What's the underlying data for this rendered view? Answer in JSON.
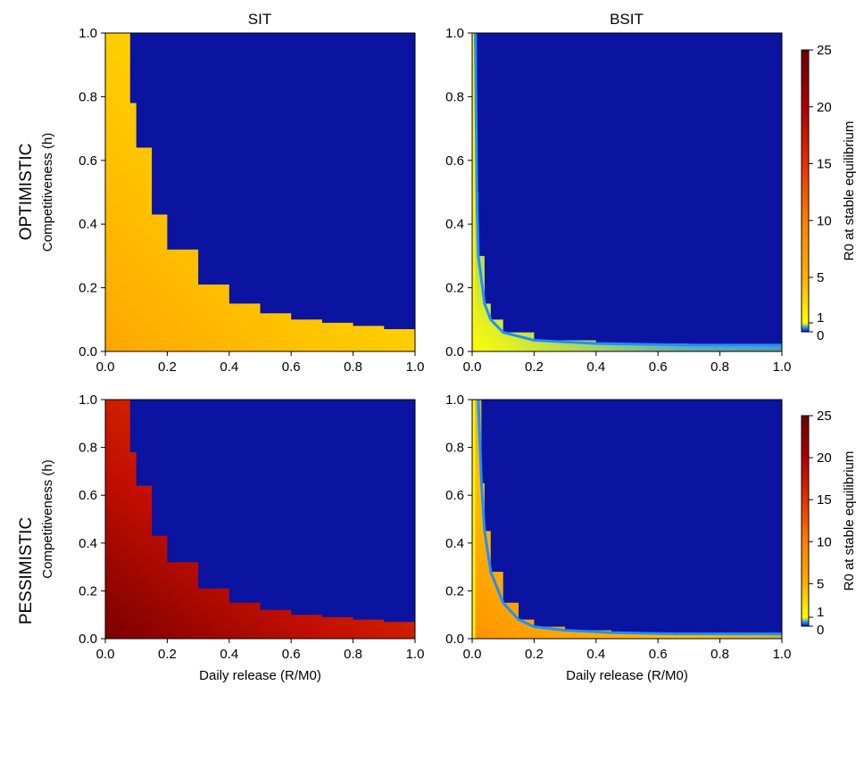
{
  "figure": {
    "columns": [
      "SIT",
      "BSIT"
    ],
    "rows": [
      "OPTIMISTIC",
      "PESSIMISTIC"
    ]
  },
  "colorbar": {
    "label": "R0 at stable equilibrium",
    "ticks": [
      0,
      1,
      5,
      10,
      15,
      20,
      25
    ],
    "min": 0,
    "max": 25,
    "colors": {
      "0": "#0a14a0",
      "0.5": "#1e90ff",
      "1": "#ffff00",
      "5": "#ffb000",
      "10": "#ff8000",
      "15": "#e83000",
      "20": "#b00000",
      "25": "#6e0000"
    }
  },
  "chart_data": [
    {
      "type": "heatmap",
      "panel": "optimistic-sit",
      "column": "SIT",
      "row": "OPTIMISTIC",
      "xlabel": "Daily release (R/M0)",
      "ylabel": "Competitiveness (h)",
      "xlim": [
        0,
        1
      ],
      "ylim": [
        0,
        1
      ],
      "xticks": [
        "0.0",
        "0.2",
        "0.4",
        "0.6",
        "0.8",
        "1.0"
      ],
      "yticks": [
        "0.0",
        "0.2",
        "0.4",
        "0.6",
        "0.8",
        "1.0"
      ],
      "boundary": [
        [
          0.06,
          1.0
        ],
        [
          0.08,
          0.78
        ],
        [
          0.1,
          0.64
        ],
        [
          0.15,
          0.43
        ],
        [
          0.2,
          0.32
        ],
        [
          0.3,
          0.21
        ],
        [
          0.4,
          0.15
        ],
        [
          0.5,
          0.12
        ],
        [
          0.6,
          0.1
        ],
        [
          0.7,
          0.09
        ],
        [
          0.8,
          0.08
        ],
        [
          0.9,
          0.07
        ],
        [
          1.0,
          0.06
        ]
      ],
      "region_below_value_range": [
        2,
        6
      ],
      "region_above_value": 0
    },
    {
      "type": "heatmap",
      "panel": "optimistic-bsit",
      "column": "BSIT",
      "row": "OPTIMISTIC",
      "xlabel": "Daily release (R/M0)",
      "ylabel": "",
      "xlim": [
        0,
        1
      ],
      "ylim": [
        0,
        1
      ],
      "xticks": [
        "0.0",
        "0.2",
        "0.4",
        "0.6",
        "0.8",
        "1.0"
      ],
      "yticks": [
        "0.0",
        "0.2",
        "0.4",
        "0.6",
        "0.8",
        "1.0"
      ],
      "boundary": [
        [
          0.01,
          1.0
        ],
        [
          0.015,
          0.5
        ],
        [
          0.02,
          0.3
        ],
        [
          0.04,
          0.15
        ],
        [
          0.06,
          0.1
        ],
        [
          0.1,
          0.06
        ],
        [
          0.2,
          0.035
        ],
        [
          0.4,
          0.025
        ],
        [
          0.7,
          0.02
        ],
        [
          1.0,
          0.02
        ]
      ],
      "edge_band_max_x": 0.01,
      "region_below_value_range": [
        0.3,
        1
      ],
      "region_above_value": 0
    },
    {
      "type": "heatmap",
      "panel": "pessimistic-sit",
      "column": "SIT",
      "row": "PESSIMISTIC",
      "xlabel": "Daily release (R/M0)",
      "ylabel": "Competitiveness (h)",
      "xlim": [
        0,
        1
      ],
      "ylim": [
        0,
        1
      ],
      "xticks": [
        "0.0",
        "0.2",
        "0.4",
        "0.6",
        "0.8",
        "1.0"
      ],
      "yticks": [
        "0.0",
        "0.2",
        "0.4",
        "0.6",
        "0.8",
        "1.0"
      ],
      "boundary": [
        [
          0.06,
          1.0
        ],
        [
          0.08,
          0.78
        ],
        [
          0.1,
          0.64
        ],
        [
          0.15,
          0.43
        ],
        [
          0.2,
          0.32
        ],
        [
          0.3,
          0.21
        ],
        [
          0.4,
          0.15
        ],
        [
          0.5,
          0.12
        ],
        [
          0.6,
          0.1
        ],
        [
          0.7,
          0.09
        ],
        [
          0.8,
          0.08
        ],
        [
          0.9,
          0.07
        ],
        [
          1.0,
          0.06
        ]
      ],
      "region_below_value_range": [
        13,
        24
      ],
      "region_above_value": 0
    },
    {
      "type": "heatmap",
      "panel": "pessimistic-bsit",
      "column": "BSIT",
      "row": "PESSIMISTIC",
      "xlabel": "Daily release (R/M0)",
      "ylabel": "",
      "xlim": [
        0,
        1
      ],
      "ylim": [
        0,
        1
      ],
      "xticks": [
        "0.0",
        "0.2",
        "0.4",
        "0.6",
        "0.8",
        "1.0"
      ],
      "yticks": [
        "0.0",
        "0.2",
        "0.4",
        "0.6",
        "0.8",
        "1.0"
      ],
      "boundary": [
        [
          0.02,
          1.0
        ],
        [
          0.03,
          0.65
        ],
        [
          0.04,
          0.45
        ],
        [
          0.06,
          0.28
        ],
        [
          0.1,
          0.15
        ],
        [
          0.15,
          0.08
        ],
        [
          0.2,
          0.05
        ],
        [
          0.3,
          0.035
        ],
        [
          0.45,
          0.025
        ],
        [
          0.65,
          0.02
        ],
        [
          1.0,
          0.02
        ]
      ],
      "edge_band_max_x": 0.01,
      "region_below_value_range": [
        0.5,
        8
      ],
      "region_above_value": 0
    }
  ]
}
